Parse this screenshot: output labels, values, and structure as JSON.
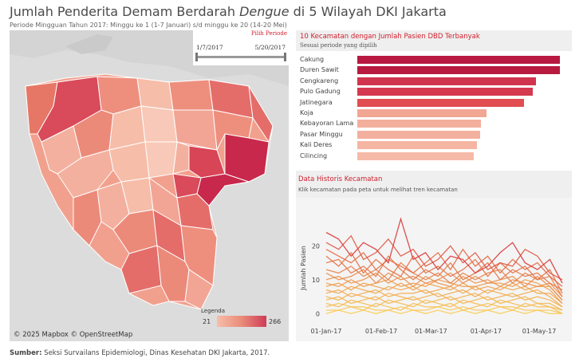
{
  "header": {
    "title_before": "Jumlah Penderita Demam Berdarah ",
    "title_italic": "Dengue",
    "title_after": " di 5 Wilayah DKI Jakarta",
    "subtitle": "Periode Mingguan Tahun 2017: Minggu ke 1 (1-7 Januari) s/d minggu ke 20 (14-20 Mei)"
  },
  "map": {
    "attribution": "© 2025 Mapbox  © OpenStreetMap",
    "legend": {
      "title": "Legenda",
      "min": "21",
      "max": "266"
    },
    "colors": {
      "low": "#f6bda9",
      "mid": "#e98c79",
      "high": "#cf3c58",
      "background": "#dcdcdc",
      "border": "#ffffff"
    }
  },
  "period": {
    "label": "Pilih Periode",
    "start": "1/7/2017",
    "end": "5/20/2017"
  },
  "top10": {
    "title": "10 Kecamatan dengan Jumlah Pasien DBD Terbanyak",
    "subtitle": "Sesuai periode yang dipilih",
    "items": [
      {
        "name": "Cakung",
        "value": 266,
        "color": "#b7193f"
      },
      {
        "name": "Duren Sawit",
        "value": 266,
        "color": "#b7193f"
      },
      {
        "name": "Cengkareng",
        "value": 235,
        "color": "#d0344e"
      },
      {
        "name": "Pulo Gadung",
        "value": 230,
        "color": "#d4394f"
      },
      {
        "name": "Jatinegara",
        "value": 219,
        "color": "#e14d50"
      },
      {
        "name": "Koja",
        "value": 170,
        "color": "#f2a694"
      },
      {
        "name": "Kebayoran Lama",
        "value": 162,
        "color": "#f4ae9c"
      },
      {
        "name": "Pasar Minggu",
        "value": 161,
        "color": "#f4b09e"
      },
      {
        "name": "Kali Deres",
        "value": 157,
        "color": "#f5b5a3"
      },
      {
        "name": "Cilincing",
        "value": 153,
        "color": "#f6baa8"
      }
    ]
  },
  "history": {
    "title": "Data Historis Kecamatan",
    "subtitle": "Klik kecamatan pada peta untuk melihat tren kecamatan"
  },
  "chart_data": {
    "type": "line",
    "ylabel": "Jumlah Pasien",
    "xlabel": "",
    "ylim": [
      -3,
      30
    ],
    "yticks": [
      0,
      10,
      20
    ],
    "xticks": [
      {
        "label": "01-Jan-17",
        "week": 0.0
      },
      {
        "label": "01-Feb-17",
        "week": 4.43
      },
      {
        "label": "01-Mar-17",
        "week": 8.43
      },
      {
        "label": "01-Apr-17",
        "week": 12.86
      },
      {
        "label": "01-May-17",
        "week": 17.14
      }
    ],
    "x": [
      "07-Jan-17",
      "14-Jan-17",
      "21-Jan-17",
      "28-Jan-17",
      "04-Feb-17",
      "11-Feb-17",
      "18-Feb-17",
      "25-Feb-17",
      "04-Mar-17",
      "11-Mar-17",
      "18-Mar-17",
      "25-Mar-17",
      "01-Apr-17",
      "08-Apr-17",
      "15-Apr-17",
      "22-Apr-17",
      "29-Apr-17",
      "06-May-17",
      "13-May-17",
      "20-May-17"
    ],
    "color_low": "#fbd35a",
    "color_high": "#d93b3b",
    "series": [
      {
        "values": [
          24,
          22,
          17,
          21,
          19,
          15,
          28,
          16,
          18,
          13,
          17,
          16,
          12,
          14,
          18,
          21,
          15,
          13,
          16,
          9
        ]
      },
      {
        "values": [
          21,
          19,
          23,
          16,
          18,
          22,
          17,
          19,
          14,
          16,
          20,
          15,
          18,
          13,
          15,
          14,
          19,
          17,
          12,
          10
        ]
      },
      {
        "values": [
          19,
          17,
          15,
          18,
          13,
          16,
          14,
          12,
          15,
          18,
          13,
          19,
          14,
          17,
          12,
          16,
          13,
          15,
          11,
          8
        ]
      },
      {
        "values": [
          17,
          14,
          18,
          12,
          16,
          13,
          11,
          17,
          12,
          14,
          11,
          13,
          16,
          11,
          15,
          12,
          14,
          10,
          13,
          6
        ]
      },
      {
        "values": [
          15,
          16,
          12,
          14,
          11,
          17,
          13,
          10,
          13,
          11,
          15,
          10,
          12,
          15,
          10,
          13,
          11,
          12,
          9,
          7
        ]
      },
      {
        "values": [
          13,
          12,
          14,
          11,
          13,
          10,
          15,
          12,
          10,
          12,
          9,
          12,
          10,
          12,
          13,
          9,
          12,
          10,
          11,
          5
        ]
      },
      {
        "values": [
          12,
          10,
          11,
          13,
          9,
          12,
          10,
          11,
          9,
          10,
          12,
          9,
          11,
          9,
          10,
          11,
          8,
          11,
          8,
          4
        ]
      },
      {
        "values": [
          10,
          11,
          9,
          10,
          12,
          9,
          11,
          8,
          11,
          9,
          8,
          11,
          9,
          10,
          8,
          10,
          9,
          8,
          9,
          5
        ]
      },
      {
        "values": [
          9,
          8,
          10,
          8,
          9,
          10,
          8,
          9,
          8,
          10,
          9,
          8,
          8,
          9,
          9,
          8,
          10,
          9,
          7,
          3
        ]
      },
      {
        "values": [
          8,
          9,
          7,
          9,
          8,
          7,
          9,
          7,
          9,
          8,
          7,
          9,
          7,
          8,
          7,
          9,
          7,
          8,
          8,
          4
        ]
      },
      {
        "values": [
          7,
          6,
          8,
          7,
          6,
          8,
          7,
          8,
          6,
          7,
          8,
          6,
          8,
          6,
          8,
          7,
          8,
          6,
          6,
          3
        ]
      },
      {
        "values": [
          6,
          7,
          5,
          6,
          7,
          5,
          6,
          6,
          7,
          5,
          6,
          7,
          5,
          7,
          6,
          5,
          6,
          7,
          5,
          2
        ]
      },
      {
        "values": [
          5,
          4,
          6,
          5,
          4,
          6,
          5,
          4,
          5,
          6,
          4,
          5,
          6,
          4,
          5,
          6,
          4,
          5,
          4,
          2
        ]
      },
      {
        "values": [
          4,
          5,
          3,
          4,
          5,
          3,
          4,
          5,
          3,
          4,
          5,
          3,
          4,
          5,
          3,
          4,
          5,
          3,
          3,
          1
        ]
      },
      {
        "values": [
          3,
          2,
          4,
          3,
          2,
          4,
          3,
          2,
          4,
          3,
          2,
          4,
          3,
          2,
          4,
          3,
          2,
          3,
          2,
          1
        ]
      },
      {
        "values": [
          2,
          3,
          2,
          1,
          3,
          2,
          1,
          3,
          2,
          2,
          3,
          1,
          2,
          3,
          2,
          1,
          3,
          2,
          2,
          0
        ]
      },
      {
        "values": [
          1,
          1,
          2,
          2,
          1,
          1,
          2,
          1,
          1,
          2,
          1,
          2,
          1,
          1,
          2,
          2,
          1,
          1,
          1,
          0
        ]
      },
      {
        "values": [
          0,
          1,
          0,
          1,
          0,
          1,
          0,
          1,
          0,
          1,
          0,
          1,
          0,
          1,
          0,
          1,
          0,
          1,
          0,
          0
        ]
      }
    ]
  }
}
